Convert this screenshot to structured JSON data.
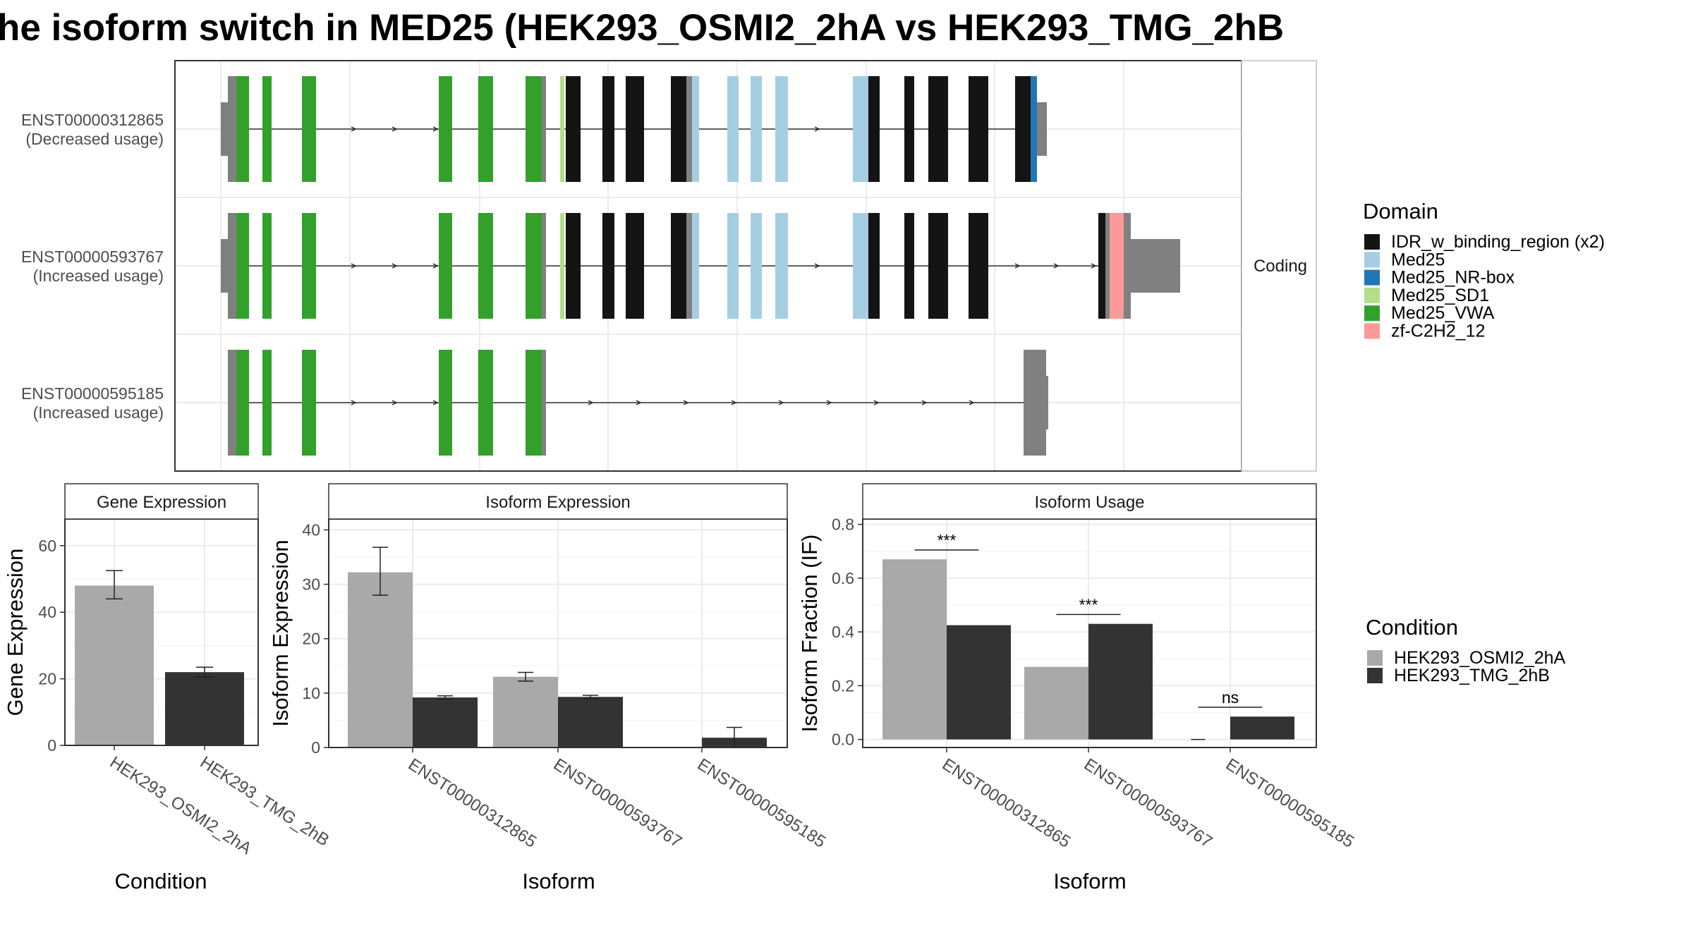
{
  "title": "he isoform switch in MED25 (HEK293_OSMI2_2hA vs HEK293_TMG_2hB",
  "colors": {
    "IDR": "#141414",
    "Med25": "#a6cee3",
    "NRbox": "#1f78b4",
    "SD1": "#b2df8a",
    "VWA": "#33a02c",
    "zf": "#fb9a99",
    "utr": "#808080",
    "cond1": "#a9a9a9",
    "cond2": "#333333"
  },
  "structure": {
    "strip_label": "Coding",
    "isoforms": [
      {
        "id": "ENST00000312865",
        "usage": "(Decreased usage)",
        "blocks": [
          {
            "x": 313,
            "w": 10,
            "h": "utr",
            "c": "utr"
          },
          {
            "x": 323,
            "w": 12,
            "h": "full",
            "c": "utr"
          },
          {
            "x": 335,
            "w": 18,
            "h": "full",
            "c": "VWA"
          },
          {
            "x": 372,
            "w": 13,
            "h": "full",
            "c": "VWA"
          },
          {
            "x": 428,
            "w": 20,
            "h": "full",
            "c": "VWA"
          },
          {
            "x": 622,
            "w": 19,
            "h": "full",
            "c": "VWA"
          },
          {
            "x": 678,
            "w": 21,
            "h": "full",
            "c": "VWA"
          },
          {
            "x": 745,
            "w": 23,
            "h": "full",
            "c": "VWA"
          },
          {
            "x": 768,
            "w": 6,
            "h": "full",
            "c": "utr"
          },
          {
            "x": 794,
            "w": 6,
            "h": "full",
            "c": "SD1"
          },
          {
            "x": 802,
            "w": 21,
            "h": "full",
            "c": "IDR"
          },
          {
            "x": 854,
            "w": 17,
            "h": "full",
            "c": "IDR"
          },
          {
            "x": 887,
            "w": 26,
            "h": "full",
            "c": "IDR"
          },
          {
            "x": 951,
            "w": 22,
            "h": "full",
            "c": "IDR"
          },
          {
            "x": 973,
            "w": 8,
            "h": "full",
            "c": "utr"
          },
          {
            "x": 981,
            "w": 10,
            "h": "full",
            "c": "Med25"
          },
          {
            "x": 1031,
            "w": 16,
            "h": "full",
            "c": "Med25"
          },
          {
            "x": 1064,
            "w": 16,
            "h": "full",
            "c": "Med25"
          },
          {
            "x": 1099,
            "w": 18,
            "h": "full",
            "c": "Med25"
          },
          {
            "x": 1209,
            "w": 22,
            "h": "full",
            "c": "Med25"
          },
          {
            "x": 1231,
            "w": 16,
            "h": "full",
            "c": "IDR"
          },
          {
            "x": 1282,
            "w": 14,
            "h": "full",
            "c": "IDR"
          },
          {
            "x": 1316,
            "w": 28,
            "h": "full",
            "c": "IDR"
          },
          {
            "x": 1373,
            "w": 28,
            "h": "full",
            "c": "IDR"
          },
          {
            "x": 1439,
            "w": 22,
            "h": "full",
            "c": "IDR"
          },
          {
            "x": 1461,
            "w": 9,
            "h": "full",
            "c": "NRbox"
          },
          {
            "x": 1470,
            "w": 14,
            "h": "utr",
            "c": "utr"
          }
        ],
        "arrows": [
          504,
          562,
          620,
          1161
        ]
      },
      {
        "id": "ENST00000593767",
        "usage": "(Increased usage)",
        "blocks": [
          {
            "x": 313,
            "w": 10,
            "h": "utr",
            "c": "utr"
          },
          {
            "x": 323,
            "w": 12,
            "h": "full",
            "c": "utr"
          },
          {
            "x": 335,
            "w": 18,
            "h": "full",
            "c": "VWA"
          },
          {
            "x": 372,
            "w": 13,
            "h": "full",
            "c": "VWA"
          },
          {
            "x": 428,
            "w": 20,
            "h": "full",
            "c": "VWA"
          },
          {
            "x": 622,
            "w": 19,
            "h": "full",
            "c": "VWA"
          },
          {
            "x": 678,
            "w": 21,
            "h": "full",
            "c": "VWA"
          },
          {
            "x": 745,
            "w": 23,
            "h": "full",
            "c": "VWA"
          },
          {
            "x": 768,
            "w": 6,
            "h": "full",
            "c": "utr"
          },
          {
            "x": 794,
            "w": 6,
            "h": "full",
            "c": "SD1"
          },
          {
            "x": 802,
            "w": 21,
            "h": "full",
            "c": "IDR"
          },
          {
            "x": 854,
            "w": 17,
            "h": "full",
            "c": "IDR"
          },
          {
            "x": 887,
            "w": 26,
            "h": "full",
            "c": "IDR"
          },
          {
            "x": 951,
            "w": 22,
            "h": "full",
            "c": "IDR"
          },
          {
            "x": 973,
            "w": 8,
            "h": "full",
            "c": "utr"
          },
          {
            "x": 981,
            "w": 10,
            "h": "full",
            "c": "Med25"
          },
          {
            "x": 1031,
            "w": 16,
            "h": "full",
            "c": "Med25"
          },
          {
            "x": 1064,
            "w": 16,
            "h": "full",
            "c": "Med25"
          },
          {
            "x": 1099,
            "w": 18,
            "h": "full",
            "c": "Med25"
          },
          {
            "x": 1209,
            "w": 22,
            "h": "full",
            "c": "Med25"
          },
          {
            "x": 1231,
            "w": 16,
            "h": "full",
            "c": "IDR"
          },
          {
            "x": 1282,
            "w": 14,
            "h": "full",
            "c": "IDR"
          },
          {
            "x": 1316,
            "w": 28,
            "h": "full",
            "c": "IDR"
          },
          {
            "x": 1373,
            "w": 28,
            "h": "full",
            "c": "IDR"
          },
          {
            "x": 1557,
            "w": 10,
            "h": "full",
            "c": "IDR"
          },
          {
            "x": 1567,
            "w": 6,
            "h": "full",
            "c": "utr"
          },
          {
            "x": 1573,
            "w": 20,
            "h": "full",
            "c": "zf"
          },
          {
            "x": 1593,
            "w": 10,
            "h": "full",
            "c": "utr"
          },
          {
            "x": 1603,
            "w": 70,
            "h": "utr",
            "c": "utr"
          }
        ],
        "arrows": [
          504,
          562,
          620,
          1161,
          1445,
          1500,
          1553
        ]
      },
      {
        "id": "ENST00000595185",
        "usage": "(Increased usage)",
        "blocks": [
          {
            "x": 323,
            "w": 12,
            "h": "full",
            "c": "utr"
          },
          {
            "x": 335,
            "w": 18,
            "h": "full",
            "c": "VWA"
          },
          {
            "x": 372,
            "w": 13,
            "h": "full",
            "c": "VWA"
          },
          {
            "x": 428,
            "w": 20,
            "h": "full",
            "c": "VWA"
          },
          {
            "x": 622,
            "w": 19,
            "h": "full",
            "c": "VWA"
          },
          {
            "x": 678,
            "w": 21,
            "h": "full",
            "c": "VWA"
          },
          {
            "x": 745,
            "w": 23,
            "h": "full",
            "c": "VWA"
          },
          {
            "x": 768,
            "w": 6,
            "h": "full",
            "c": "utr"
          },
          {
            "x": 1451,
            "w": 32,
            "h": "full",
            "c": "utr"
          },
          {
            "x": 1483,
            "w": 3,
            "h": "utr",
            "c": "utr"
          }
        ],
        "arrows": [
          504,
          562,
          620,
          840,
          908,
          975,
          1043,
          1110,
          1178,
          1245,
          1313,
          1380
        ]
      }
    ]
  },
  "legend_domain": {
    "title": "Domain",
    "entries": [
      {
        "label": "IDR_w_binding_region (x2)",
        "c": "IDR"
      },
      {
        "label": "Med25",
        "c": "Med25"
      },
      {
        "label": "Med25_NR-box",
        "c": "NRbox"
      },
      {
        "label": "Med25_SD1",
        "c": "SD1"
      },
      {
        "label": "Med25_VWA",
        "c": "VWA"
      },
      {
        "label": "zf-C2H2_12",
        "c": "zf"
      }
    ]
  },
  "legend_condition": {
    "title": "Condition",
    "entries": [
      {
        "label": "HEK293_OSMI2_2hA",
        "c": "cond1"
      },
      {
        "label": "HEK293_TMG_2hB",
        "c": "cond2"
      }
    ]
  },
  "chart_data": [
    {
      "type": "bar",
      "title": "Gene Expression",
      "xlabel": "Condition",
      "ylabel": "Gene Expression",
      "ylim": [
        0,
        68
      ],
      "yticks": [
        0,
        20,
        40,
        60
      ],
      "categories": [
        "HEK293_OSMI2_2hA",
        "HEK293_TMG_2hB"
      ],
      "values": [
        48,
        22
      ],
      "errors": [
        [
          44,
          52.5
        ],
        [
          20.5,
          23.5
        ]
      ],
      "color_keys": [
        "cond1",
        "cond2"
      ]
    },
    {
      "type": "bar",
      "title": "Isoform Expression",
      "xlabel": "Isoform",
      "ylabel": "Isoform Expression",
      "ylim": [
        0,
        42
      ],
      "yticks": [
        0,
        10,
        20,
        30,
        40
      ],
      "categories": [
        "ENST00000312865",
        "ENST00000593767",
        "ENST00000595185"
      ],
      "series": [
        {
          "name": "HEK293_OSMI2_2hA",
          "color": "cond1",
          "values": [
            32.2,
            13.0,
            0.05
          ],
          "errors": [
            [
              28,
              36.8
            ],
            [
              12.2,
              13.8
            ],
            null
          ]
        },
        {
          "name": "HEK293_TMG_2hB",
          "color": "cond2",
          "values": [
            9.2,
            9.3,
            1.8
          ],
          "errors": [
            [
              8.9,
              9.5
            ],
            [
              9.0,
              9.6
            ],
            [
              0,
              3.7
            ]
          ]
        }
      ]
    },
    {
      "type": "bar",
      "title": "Isoform Usage",
      "xlabel": "Isoform",
      "ylabel": "Isoform Fraction (IF)",
      "ylim": [
        -0.03,
        0.82
      ],
      "yticks": [
        0.0,
        0.2,
        0.4,
        0.6,
        0.8
      ],
      "categories": [
        "ENST00000312865",
        "ENST00000593767",
        "ENST00000595185"
      ],
      "series": [
        {
          "name": "HEK293_OSMI2_2hA",
          "color": "cond1",
          "values": [
            0.67,
            0.27,
            0.0
          ]
        },
        {
          "name": "HEK293_TMG_2hB",
          "color": "cond2",
          "values": [
            0.425,
            0.43,
            0.085
          ]
        }
      ],
      "significance": [
        {
          "label": "***",
          "y": 0.705
        },
        {
          "label": "***",
          "y": 0.465
        },
        {
          "label": "ns",
          "y": 0.12
        }
      ]
    }
  ]
}
